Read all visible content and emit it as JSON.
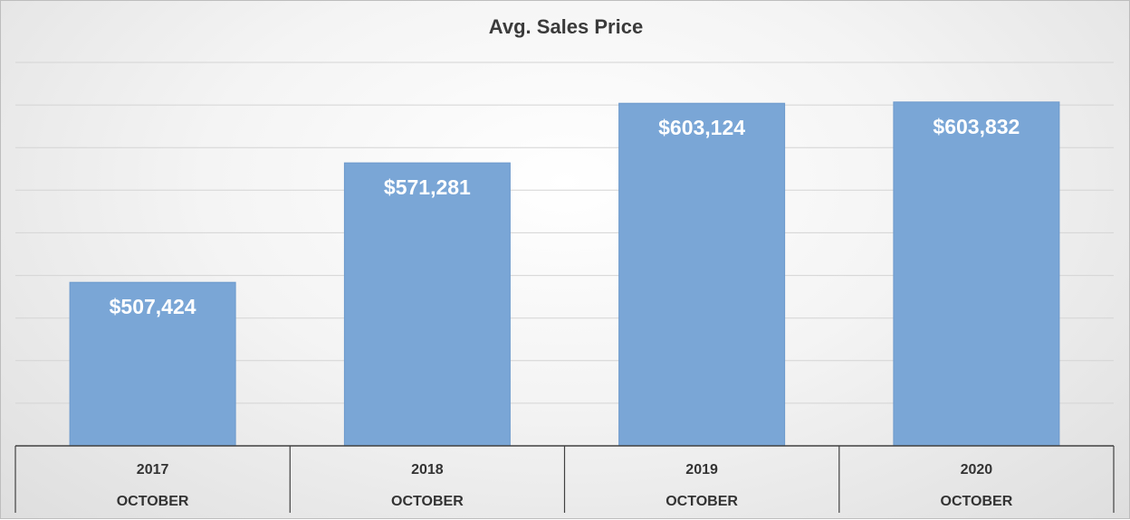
{
  "chart_data": {
    "type": "bar",
    "title": "Avg. Sales Price",
    "categories": [
      {
        "year": "2017",
        "month": "OCTOBER"
      },
      {
        "year": "2018",
        "month": "OCTOBER"
      },
      {
        "year": "2019",
        "month": "OCTOBER"
      },
      {
        "year": "2020",
        "month": "OCTOBER"
      }
    ],
    "values": [
      507424,
      571281,
      603124,
      603832
    ],
    "data_labels": [
      "$507,424",
      "$571,281",
      "$603,124",
      "$603,832"
    ],
    "ylim": [
      420000,
      625000
    ],
    "gridline_count": 9,
    "grid": true,
    "legend": "none",
    "colors": {
      "bar": "#7aa6d6",
      "bar_edge": "#6d9acc",
      "grid": "#d4d4d4",
      "axis": "#404040",
      "label": "#ffffff"
    }
  }
}
